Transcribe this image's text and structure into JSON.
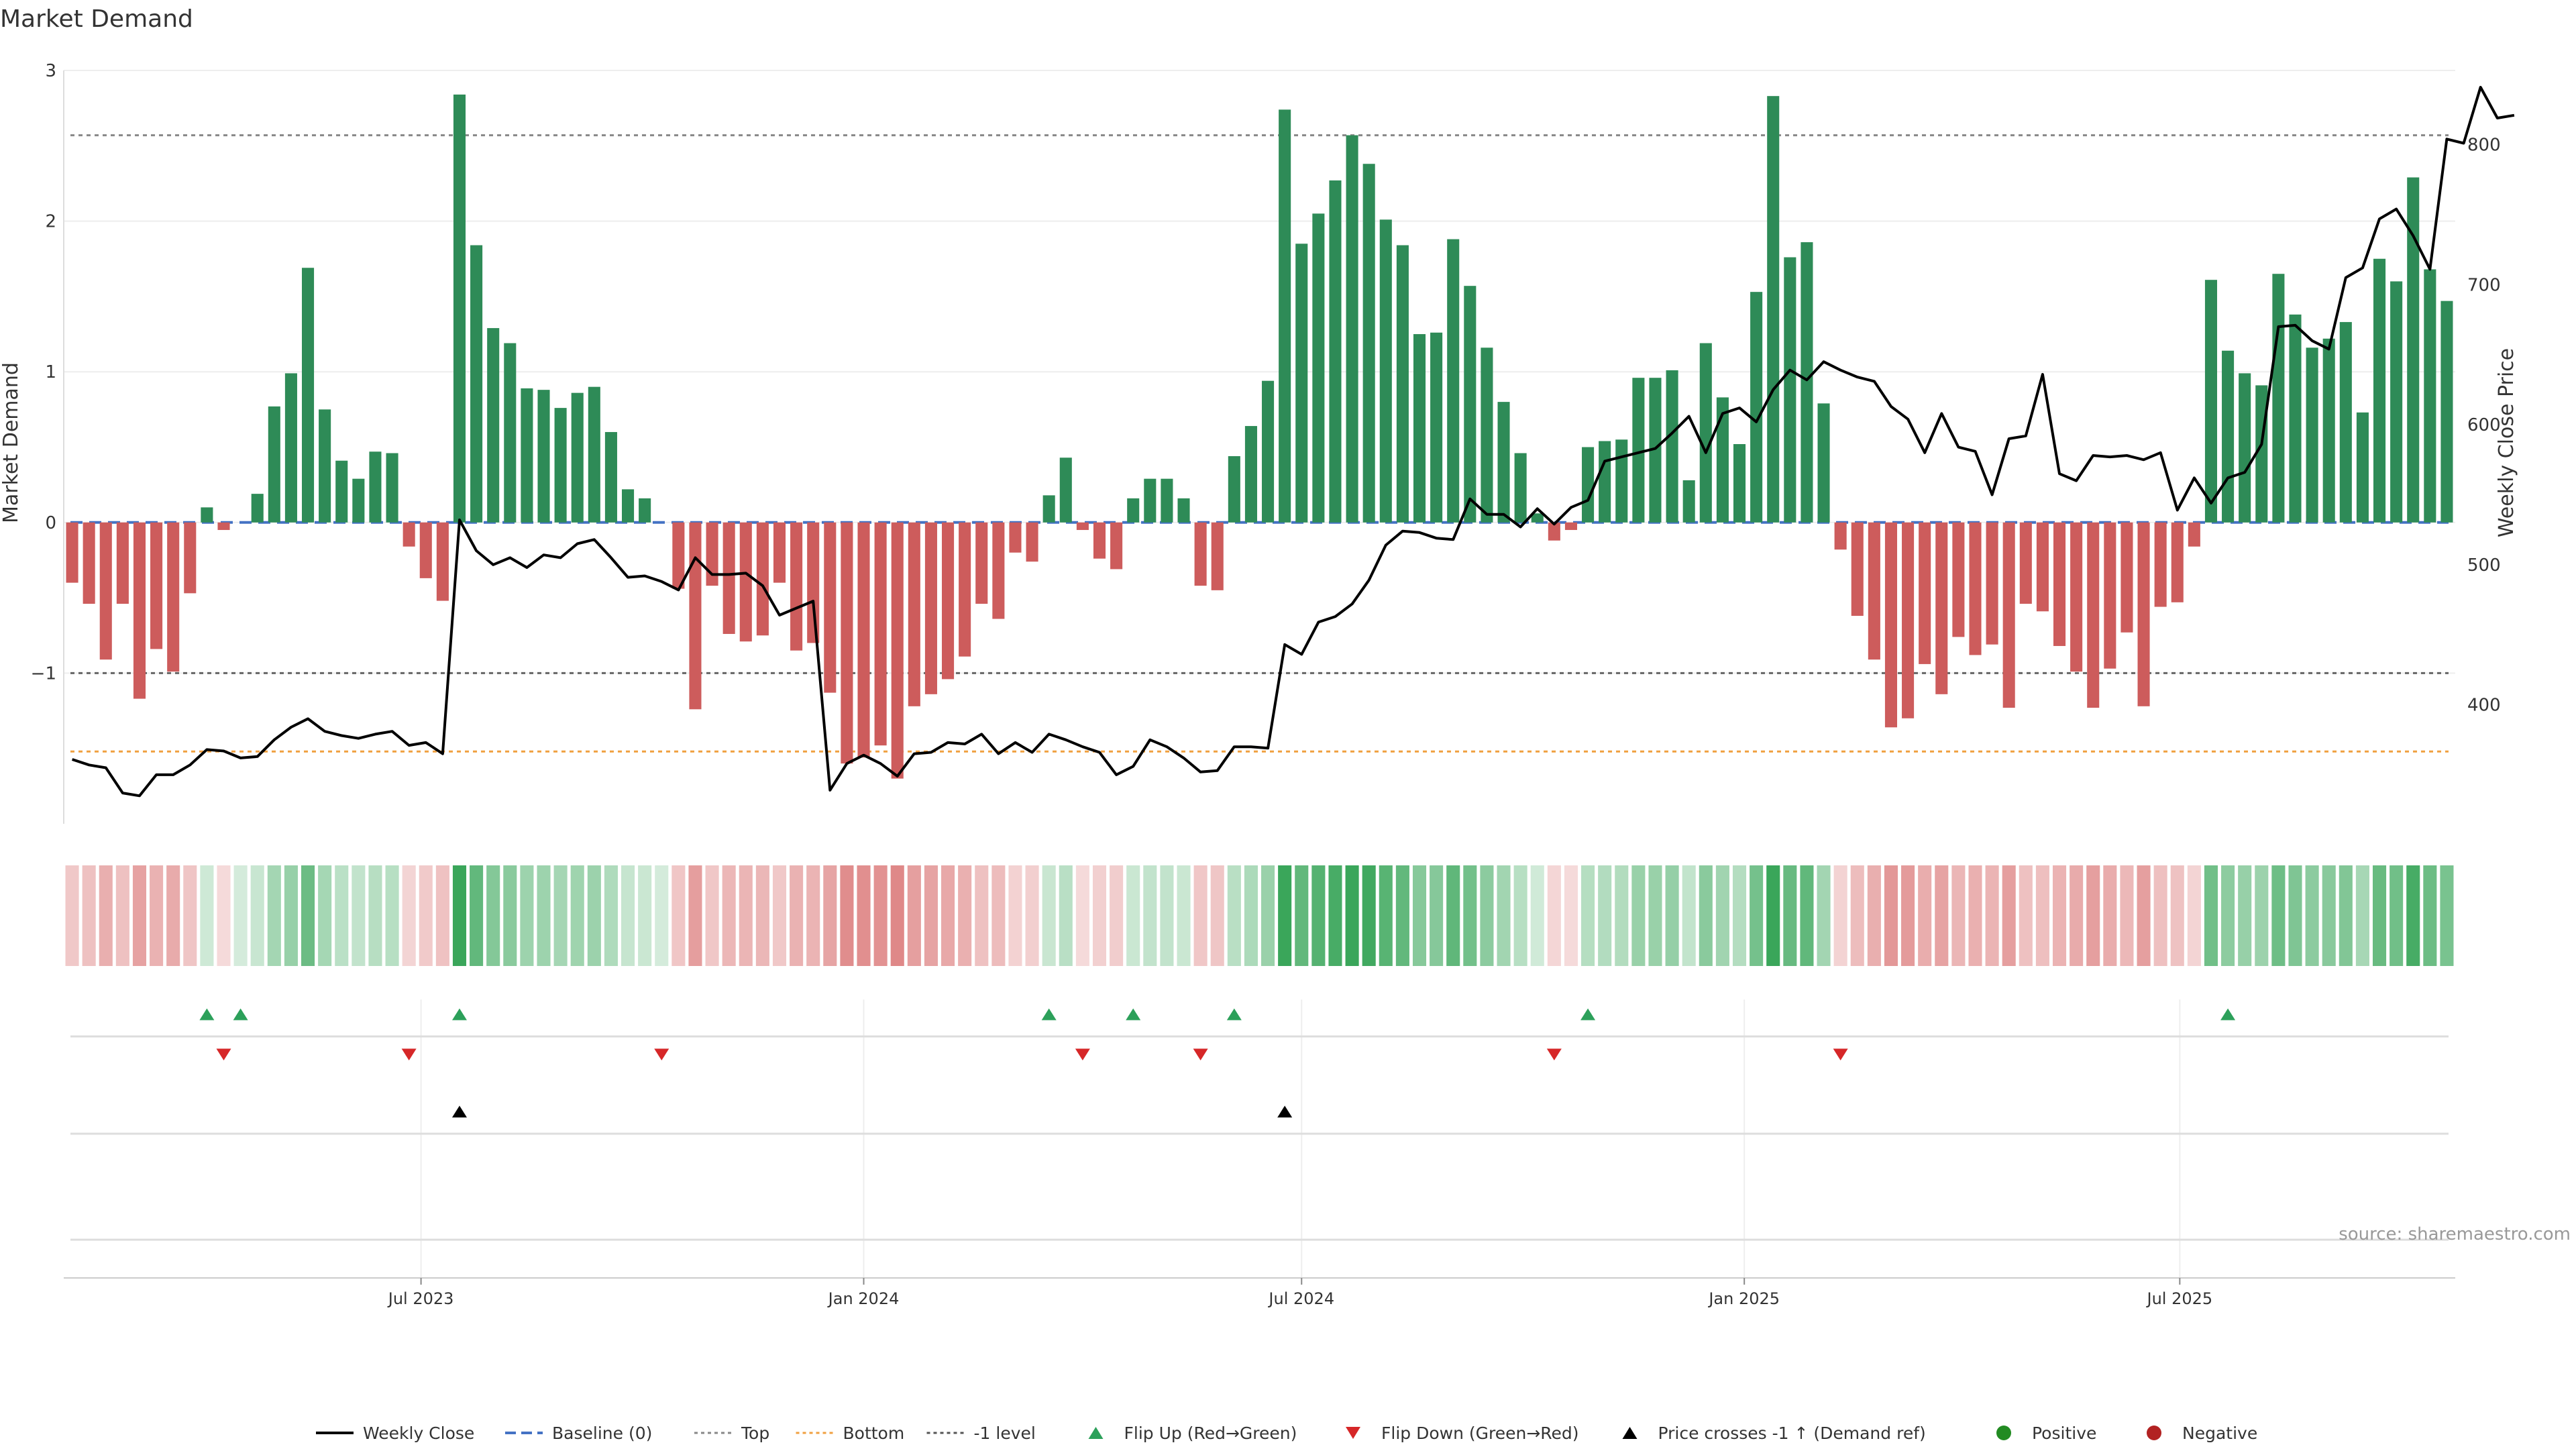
{
  "chart_data": {
    "type": "bar",
    "title": "Market Demand",
    "ylabel": "Market Demand",
    "y2label": "Weekly Close Price",
    "ylim": [
      -2.0,
      3.0
    ],
    "y2lim": [
      315,
      853
    ],
    "yticks": [
      -1,
      0,
      1,
      2,
      3
    ],
    "y2ticks": [
      400,
      500,
      600,
      700,
      800
    ],
    "x_start": "2023-02-06",
    "x_step_days": 7,
    "xticks": [
      {
        "label": "Jul 2023",
        "date": "2023-07-01"
      },
      {
        "label": "Jan 2024",
        "date": "2024-01-01"
      },
      {
        "label": "Jul 2024",
        "date": "2024-07-01"
      },
      {
        "label": "Jan 2025",
        "date": "2025-01-01"
      },
      {
        "label": "Jul 2025",
        "date": "2025-07-01"
      }
    ],
    "reference_lines": [
      {
        "name": "Top",
        "value": 2.57,
        "color": "#888888"
      },
      {
        "name": "-1 level",
        "value": -1.0,
        "color": "#666666"
      },
      {
        "name": "Bottom",
        "value": -1.52,
        "color": "#f0a040"
      },
      {
        "name": "Baseline (0)",
        "value": 0,
        "color": "#4472c4"
      }
    ],
    "series": [
      {
        "name": "Market Demand",
        "values": [
          -0.4,
          -0.54,
          -0.91,
          -0.54,
          -1.17,
          -0.84,
          -0.99,
          -0.47,
          0.1,
          -0.05,
          0,
          0.19,
          0.77,
          0.99,
          1.69,
          0.75,
          0.41,
          0.29,
          0.47,
          0.46,
          -0.16,
          -0.37,
          -0.52,
          2.84,
          1.84,
          1.29,
          1.19,
          0.89,
          0.88,
          0.76,
          0.86,
          0.9,
          0.6,
          0.22,
          0.16,
          0,
          -0.44,
          -1.24,
          -0.42,
          -0.74,
          -0.79,
          -0.75,
          -0.4,
          -0.85,
          -0.8,
          -1.13,
          -1.6,
          -1.56,
          -1.48,
          -1.7,
          -1.22,
          -1.14,
          -1.04,
          -0.89,
          -0.54,
          -0.64,
          -0.2,
          -0.26,
          0.18,
          0.43,
          -0.05,
          -0.24,
          -0.31,
          0.16,
          0.29,
          0.29,
          0.16,
          -0.42,
          -0.45,
          0.44,
          0.64,
          0.94,
          2.74,
          1.85,
          2.05,
          2.27,
          2.57,
          2.38,
          2.01,
          1.84,
          1.25,
          1.26,
          1.88,
          1.57,
          1.16,
          0.8,
          0.46,
          0.06,
          -0.12,
          -0.05,
          0.5,
          0.54,
          0.55,
          0.96,
          0.96,
          1.01,
          0.28,
          1.19,
          0.83,
          0.52,
          1.53,
          2.83,
          1.76,
          1.86,
          0.79,
          -0.18,
          -0.62,
          -0.91,
          -1.36,
          -1.3,
          -0.94,
          -1.14,
          -0.76,
          -0.88,
          -0.81,
          -1.23,
          -0.54,
          -0.59,
          -0.82,
          -0.99,
          -1.23,
          -0.97,
          -0.73,
          -1.22,
          -0.56,
          -0.53,
          -0.16,
          1.61,
          1.14,
          0.99,
          0.91,
          1.65,
          1.38,
          1.16,
          1.22,
          1.33,
          0.73,
          1.75,
          1.6,
          2.29,
          1.68,
          1.47
        ]
      },
      {
        "name": "Weekly Close",
        "values": [
          361,
          357,
          355,
          337,
          335,
          350,
          350,
          357,
          368,
          367,
          362,
          363,
          375,
          384,
          390,
          381,
          378,
          376,
          379,
          381,
          371,
          373,
          365,
          532,
          510,
          500,
          505,
          498,
          507,
          505,
          515,
          518,
          505,
          491,
          492,
          488,
          482,
          505,
          493,
          493,
          494,
          485,
          464,
          469,
          474,
          339,
          358,
          364,
          358,
          349,
          365,
          366,
          373,
          372,
          379,
          365,
          373,
          366,
          379,
          375,
          370,
          366,
          350,
          356,
          375,
          370,
          362,
          352,
          353,
          370,
          370,
          369,
          443,
          436,
          459,
          463,
          472,
          489,
          514,
          524,
          523,
          519,
          518,
          547,
          536,
          536,
          527,
          540,
          529,
          541,
          546,
          574,
          577,
          580,
          583,
          594,
          606,
          580,
          608,
          612,
          602,
          625,
          639,
          632,
          645,
          639,
          634,
          631,
          613,
          604,
          580,
          608,
          584,
          581,
          550,
          590,
          592,
          636,
          565,
          560,
          578,
          577,
          578,
          575,
          580,
          539,
          562,
          544,
          562,
          566,
          586,
          670,
          671,
          660,
          654,
          705,
          712,
          747,
          754,
          735,
          711,
          804,
          801,
          841,
          819,
          821
        ]
      }
    ],
    "strip_chart": {
      "description_values": "same as Market Demand series",
      "positive_color": "#3aa65a",
      "negative_color": "#d46060"
    },
    "events": {
      "flip_up_weeks": [
        8,
        10,
        23,
        58,
        63,
        69,
        90,
        128
      ],
      "flip_down_weeks": [
        9,
        20,
        35,
        60,
        67,
        88,
        105
      ],
      "price_cross_weeks": [
        23,
        72
      ]
    },
    "legend": {
      "placement": "bottom-center",
      "entries": [
        {
          "label": "Weekly Close",
          "symbol": "line",
          "color": "#000000"
        },
        {
          "label": "Baseline (0)",
          "symbol": "dash",
          "color": "#4472c4"
        },
        {
          "label": "Top",
          "symbol": "dot",
          "color": "#888888"
        },
        {
          "label": "Bottom",
          "symbol": "dot",
          "color": "#f0a040"
        },
        {
          "label": "-1 level",
          "symbol": "dot",
          "color": "#555555"
        },
        {
          "label": "Flip Up (Red→Green)",
          "symbol": "tri-up",
          "color": "#2ca05a"
        },
        {
          "label": "Flip Down (Green→Red)",
          "symbol": "tri-down",
          "color": "#d62728"
        },
        {
          "label": "Price crosses -1 ↑ (Demand ref)",
          "symbol": "tri-up",
          "color": "#000000"
        },
        {
          "label": "Positive",
          "symbol": "circle",
          "color": "#228b22"
        },
        {
          "label": "Negative",
          "symbol": "circle",
          "color": "#b22222"
        }
      ]
    },
    "colors": {
      "positive_bar": "#2e8b57",
      "negative_bar": "#cd5c5c"
    },
    "source_note": "source: sharemaestro.com"
  }
}
